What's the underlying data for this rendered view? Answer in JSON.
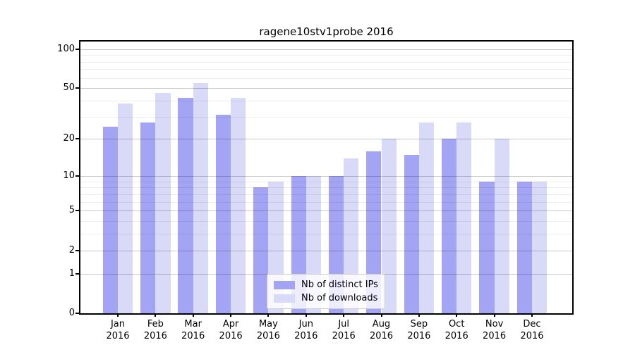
{
  "title": "ragene10stv1probe 2016",
  "chart_data": {
    "type": "bar",
    "title": "ragene10stv1probe 2016",
    "year": "2016",
    "months": [
      "Jan",
      "Feb",
      "Mar",
      "Apr",
      "May",
      "Jun",
      "Jul",
      "Aug",
      "Sep",
      "Oct",
      "Nov",
      "Dec"
    ],
    "categories": [
      "Jan 2016",
      "Feb 2016",
      "Mar 2016",
      "Apr 2016",
      "May 2016",
      "Jun 2016",
      "Jul 2016",
      "Aug 2016",
      "Sep 2016",
      "Oct 2016",
      "Nov 2016",
      "Dec 2016"
    ],
    "series": [
      {
        "name": "Nb of distinct IPs",
        "key": "distinct-ips",
        "color": "#a4a4f4",
        "values": [
          25,
          27,
          42,
          31,
          8,
          10,
          10,
          16,
          15,
          20,
          9,
          9
        ]
      },
      {
        "name": "Nb of downloads",
        "key": "downloads",
        "color": "#d9d9f8",
        "values": [
          38,
          46,
          55,
          42,
          9,
          10,
          14,
          20,
          27,
          27,
          20,
          9
        ]
      }
    ],
    "yscale": "log1p",
    "ylim": [
      0,
      114
    ],
    "yticks": [
      0,
      1,
      2,
      5,
      10,
      20,
      50,
      100
    ],
    "yticks_minor": [
      3,
      4,
      6,
      7,
      8,
      9,
      30,
      40,
      60,
      70,
      80,
      90
    ],
    "grid": true,
    "legend_position": "inside-bottom-center"
  },
  "colors": {
    "bar_dark": "#a4a4f4",
    "bar_light": "#d9d9f8",
    "axis": "#000000",
    "legend_border": "#cccccc",
    "background": "#ffffff"
  }
}
